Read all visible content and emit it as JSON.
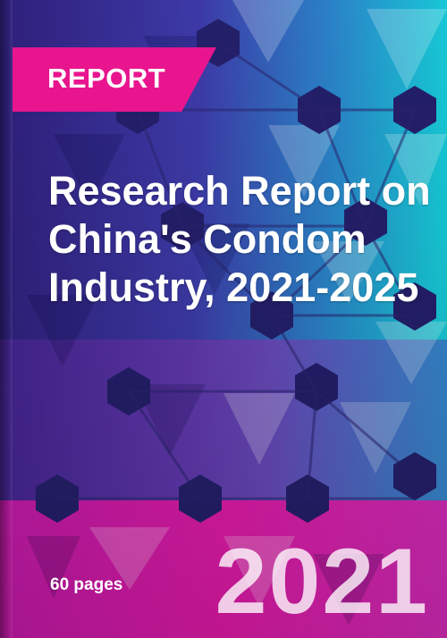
{
  "badge": {
    "label": "REPORT"
  },
  "title": "Research Report on China's Condom Industry, 2021-2025",
  "pages": "60 pages",
  "year": "2021",
  "colors": {
    "badge": "#e8158e",
    "navy": "#24226e",
    "cyan": "#1ec3d4",
    "magenta": "#e01aa8",
    "purple": "#6a3ab8"
  }
}
